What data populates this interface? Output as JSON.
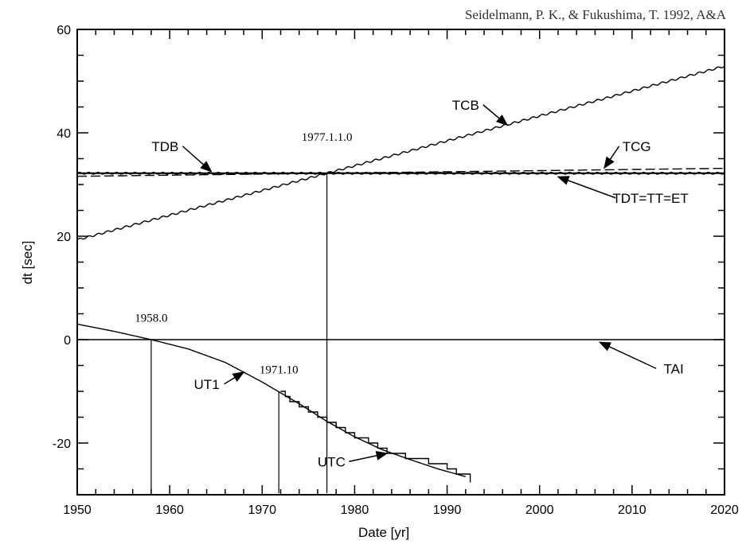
{
  "chart_data": {
    "type": "line",
    "credit": "Seidelmann, P. K., & Fukushima, T. 1992, A&A",
    "xlabel": "Date [yr]",
    "ylabel": "dt [sec]",
    "xlim": [
      1950,
      2020
    ],
    "ylim": [
      -30,
      60
    ],
    "xticks": [
      1950,
      1960,
      1970,
      1980,
      1990,
      2000,
      2010,
      2020
    ],
    "yticks": [
      -20,
      0,
      20,
      40,
      60
    ],
    "grid": false,
    "series": [
      {
        "name": "TDT=TT=ET",
        "style": "solid",
        "x": [
          1950,
          2020
        ],
        "y": [
          32.184,
          32.184
        ]
      },
      {
        "name": "TCG",
        "style": "dashed",
        "x": [
          1950,
          1977,
          2020
        ],
        "y": [
          31.59,
          32.184,
          33.13
        ]
      },
      {
        "name": "TDB",
        "style": "wavy",
        "x": [
          1950,
          2020
        ],
        "y": [
          32.184,
          32.184
        ]
      },
      {
        "name": "TCB",
        "style": "wavy",
        "x": [
          1950,
          1977,
          2020
        ],
        "y": [
          19.3,
          32.184,
          52.9
        ]
      },
      {
        "name": "TAI",
        "style": "solid",
        "x": [
          1950,
          2020
        ],
        "y": [
          0,
          0
        ]
      },
      {
        "name": "UT1",
        "style": "solid",
        "x": [
          1950,
          1954,
          1958,
          1962,
          1966,
          1968,
          1970,
          1972,
          1974,
          1977,
          1980,
          1983,
          1986,
          1989,
          1992
        ],
        "y": [
          3.0,
          1.6,
          0,
          -1.8,
          -4.4,
          -6.3,
          -8.2,
          -10.3,
          -12.4,
          -15.8,
          -18.8,
          -21.3,
          -23.2,
          -25.0,
          -26.5
        ]
      },
      {
        "name": "UTC",
        "style": "steps",
        "x": [
          1972.0,
          1972.5,
          1973.0,
          1974.0,
          1975.0,
          1976.0,
          1977.0,
          1978.0,
          1979.0,
          1980.0,
          1981.5,
          1982.5,
          1983.5,
          1985.5,
          1988.0,
          1990.0,
          1991.0,
          1992.5
        ],
        "y": [
          -10,
          -11,
          -12,
          -13,
          -14,
          -15,
          -16,
          -17,
          -18,
          -19,
          -20,
          -21,
          -22,
          -23,
          -24,
          -25,
          -26,
          -27
        ]
      }
    ],
    "vlines": [
      {
        "label": "1958.0",
        "x": 1958.0,
        "y_top": 0
      },
      {
        "label": "1971.10",
        "x": 1971.8,
        "y_top": -10
      },
      {
        "label": "1977.1.1.0",
        "x": 1977.0,
        "y_top": 32.184
      }
    ],
    "annotations": [
      {
        "text": "TCB",
        "x": 1992,
        "y": 44.5,
        "arrow_to": [
          1996.5,
          41.5
        ]
      },
      {
        "text": "TDB",
        "x": 1959.5,
        "y": 36.5,
        "arrow_to": [
          1964.5,
          32.5
        ]
      },
      {
        "text": "TCG",
        "x": 2010.5,
        "y": 36.5,
        "arrow_to": [
          2007,
          33.2
        ]
      },
      {
        "text": "TDT=TT=ET",
        "x": 2012,
        "y": 26.5,
        "arrow_to": [
          2002,
          31.5
        ]
      },
      {
        "text": "TAI",
        "x": 2014.5,
        "y": -6.5,
        "arrow_to": [
          2006.5,
          -0.5
        ]
      },
      {
        "text": "UT1",
        "x": 1964,
        "y": -9.5,
        "arrow_to": [
          1968,
          -6.3
        ]
      },
      {
        "text": "UTC",
        "x": 1977.5,
        "y": -24.5,
        "arrow_to": [
          1983.5,
          -22
        ]
      }
    ]
  }
}
